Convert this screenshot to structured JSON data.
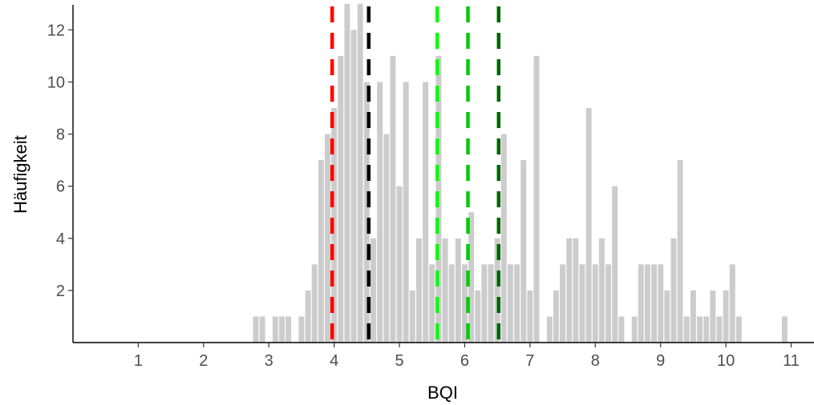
{
  "chart_data": {
    "type": "bar",
    "xlabel": "BQI",
    "ylabel": "Häufigkeit",
    "xlim": [
      0,
      11.35
    ],
    "ylim": [
      0,
      12.9
    ],
    "bin_width": 0.1,
    "x_ticks": [
      1,
      2,
      3,
      4,
      5,
      6,
      7,
      8,
      9,
      10,
      11
    ],
    "x_tick_labels": [
      "1",
      "2",
      "3",
      "4",
      "5",
      "6",
      "7",
      "8",
      "9",
      "10",
      "11"
    ],
    "y_ticks": [
      2,
      4,
      6,
      8,
      10,
      12
    ],
    "y_tick_labels": [
      "2",
      "4",
      "6",
      "8",
      "10",
      "12"
    ],
    "grid": false,
    "bar_color": "#cccccc",
    "bins": [
      {
        "x": 2.8,
        "count": 1
      },
      {
        "x": 2.9,
        "count": 1
      },
      {
        "x": 3.1,
        "count": 1
      },
      {
        "x": 3.2,
        "count": 1
      },
      {
        "x": 3.3,
        "count": 1
      },
      {
        "x": 3.5,
        "count": 1
      },
      {
        "x": 3.6,
        "count": 2
      },
      {
        "x": 3.7,
        "count": 3
      },
      {
        "x": 3.8,
        "count": 7
      },
      {
        "x": 3.9,
        "count": 8
      },
      {
        "x": 4.0,
        "count": 9
      },
      {
        "x": 4.1,
        "count": 11
      },
      {
        "x": 4.2,
        "count": 13
      },
      {
        "x": 4.3,
        "count": 12
      },
      {
        "x": 4.4,
        "count": 13
      },
      {
        "x": 4.5,
        "count": 10
      },
      {
        "x": 4.6,
        "count": 4
      },
      {
        "x": 4.7,
        "count": 10
      },
      {
        "x": 4.8,
        "count": 8
      },
      {
        "x": 4.9,
        "count": 11
      },
      {
        "x": 5.0,
        "count": 6
      },
      {
        "x": 5.1,
        "count": 10
      },
      {
        "x": 5.2,
        "count": 2
      },
      {
        "x": 5.3,
        "count": 4
      },
      {
        "x": 5.4,
        "count": 10
      },
      {
        "x": 5.5,
        "count": 3
      },
      {
        "x": 5.6,
        "count": 11
      },
      {
        "x": 5.7,
        "count": 4
      },
      {
        "x": 5.8,
        "count": 3
      },
      {
        "x": 5.9,
        "count": 4
      },
      {
        "x": 6.0,
        "count": 3
      },
      {
        "x": 6.1,
        "count": 5
      },
      {
        "x": 6.2,
        "count": 2
      },
      {
        "x": 6.3,
        "count": 3
      },
      {
        "x": 6.4,
        "count": 3
      },
      {
        "x": 6.5,
        "count": 4
      },
      {
        "x": 6.6,
        "count": 8
      },
      {
        "x": 6.7,
        "count": 3
      },
      {
        "x": 6.8,
        "count": 3
      },
      {
        "x": 6.9,
        "count": 7
      },
      {
        "x": 7.0,
        "count": 2
      },
      {
        "x": 7.1,
        "count": 11
      },
      {
        "x": 7.3,
        "count": 1
      },
      {
        "x": 7.4,
        "count": 2
      },
      {
        "x": 7.5,
        "count": 3
      },
      {
        "x": 7.6,
        "count": 4
      },
      {
        "x": 7.7,
        "count": 4
      },
      {
        "x": 7.8,
        "count": 3
      },
      {
        "x": 7.9,
        "count": 9
      },
      {
        "x": 8.0,
        "count": 3
      },
      {
        "x": 8.1,
        "count": 4
      },
      {
        "x": 8.2,
        "count": 3
      },
      {
        "x": 8.3,
        "count": 6
      },
      {
        "x": 8.4,
        "count": 1
      },
      {
        "x": 8.6,
        "count": 1
      },
      {
        "x": 8.7,
        "count": 3
      },
      {
        "x": 8.8,
        "count": 3
      },
      {
        "x": 8.9,
        "count": 3
      },
      {
        "x": 9.0,
        "count": 3
      },
      {
        "x": 9.1,
        "count": 2
      },
      {
        "x": 9.2,
        "count": 4
      },
      {
        "x": 9.3,
        "count": 7
      },
      {
        "x": 9.4,
        "count": 1
      },
      {
        "x": 9.5,
        "count": 2
      },
      {
        "x": 9.6,
        "count": 1
      },
      {
        "x": 9.7,
        "count": 1
      },
      {
        "x": 9.8,
        "count": 2
      },
      {
        "x": 9.9,
        "count": 1
      },
      {
        "x": 10.0,
        "count": 2
      },
      {
        "x": 10.1,
        "count": 3
      },
      {
        "x": 10.2,
        "count": 1
      },
      {
        "x": 10.9,
        "count": 1
      }
    ],
    "vlines": [
      {
        "x": 3.97,
        "color": "#ff0000",
        "style": "dashed"
      },
      {
        "x": 4.53,
        "color": "#000000",
        "style": "dashed"
      },
      {
        "x": 5.58,
        "color": "#00ff00",
        "style": "dashed"
      },
      {
        "x": 6.05,
        "color": "#00cc00",
        "style": "dashed"
      },
      {
        "x": 6.52,
        "color": "#006400",
        "style": "dashed"
      }
    ]
  }
}
